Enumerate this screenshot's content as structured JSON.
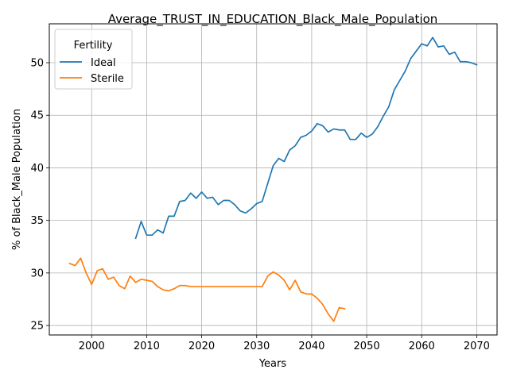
{
  "chart_data": {
    "type": "line",
    "title": "Average_TRUST_IN_EDUCATION_Black_Male_Population",
    "xlabel": "Years",
    "ylabel": "% of Black_Male Population",
    "xlim": [
      1992.3,
      2073.7
    ],
    "ylim": [
      24.1,
      53.7
    ],
    "xticks": [
      2000,
      2010,
      2020,
      2030,
      2040,
      2050,
      2060,
      2070
    ],
    "yticks": [
      25,
      30,
      35,
      40,
      45,
      50
    ],
    "grid": true,
    "legend": {
      "title": "Fertility",
      "placement": "top-left"
    },
    "series": [
      {
        "name": "Ideal",
        "color": "#1f77b4",
        "x": [
          2008,
          2009,
          2010,
          2011,
          2012,
          2013,
          2014,
          2015,
          2016,
          2017,
          2018,
          2019,
          2020,
          2021,
          2022,
          2023,
          2024,
          2025,
          2026,
          2027,
          2028,
          2029,
          2030,
          2031,
          2032,
          2033,
          2034,
          2035,
          2036,
          2037,
          2038,
          2039,
          2040,
          2041,
          2042,
          2043,
          2044,
          2045,
          2046,
          2047,
          2048,
          2049,
          2050,
          2051,
          2052,
          2053,
          2054,
          2055,
          2056,
          2057,
          2058,
          2059,
          2060,
          2061,
          2062,
          2063,
          2064,
          2065,
          2066,
          2067,
          2068,
          2069,
          2070
        ],
        "y": [
          33.3,
          34.9,
          33.6,
          33.6,
          34.1,
          33.8,
          35.4,
          35.4,
          36.8,
          36.9,
          37.6,
          37.1,
          37.7,
          37.1,
          37.2,
          36.5,
          36.9,
          36.9,
          36.5,
          35.9,
          35.7,
          36.1,
          36.6,
          36.8,
          38.5,
          40.2,
          40.9,
          40.6,
          41.7,
          42.1,
          42.9,
          43.1,
          43.5,
          44.2,
          44.0,
          43.4,
          43.7,
          43.6,
          43.6,
          42.7,
          42.7,
          43.3,
          42.9,
          43.2,
          43.9,
          44.9,
          45.8,
          47.4,
          48.3,
          49.2,
          50.4,
          51.1,
          51.8,
          51.6,
          52.4,
          51.5,
          51.6,
          50.8,
          51.0,
          50.1,
          50.1,
          50.0,
          49.8
        ]
      },
      {
        "name": "Sterile",
        "color": "#ff7f0e",
        "x": [
          1996,
          1997,
          1998,
          1999,
          2000,
          2001,
          2002,
          2003,
          2004,
          2005,
          2006,
          2007,
          2008,
          2009,
          2010,
          2011,
          2012,
          2013,
          2014,
          2015,
          2016,
          2017,
          2018,
          2019,
          2020,
          2021,
          2022,
          2023,
          2024,
          2025,
          2026,
          2027,
          2028,
          2029,
          2030,
          2031,
          2032,
          2033,
          2034,
          2035,
          2036,
          2037,
          2038,
          2039,
          2040,
          2041,
          2042,
          2043,
          2044,
          2045,
          2046
        ],
        "y": [
          30.9,
          30.7,
          31.4,
          30.0,
          28.9,
          30.2,
          30.4,
          29.4,
          29.6,
          28.8,
          28.5,
          29.7,
          29.1,
          29.4,
          29.3,
          29.2,
          28.7,
          28.4,
          28.3,
          28.5,
          28.8,
          28.8,
          28.7,
          28.7,
          28.7,
          28.7,
          28.7,
          28.7,
          28.7,
          28.7,
          28.7,
          28.7,
          28.7,
          28.7,
          28.7,
          28.7,
          29.7,
          30.1,
          29.8,
          29.3,
          28.4,
          29.3,
          28.2,
          28.0,
          28.0,
          27.6,
          27.0,
          26.1,
          25.4,
          26.7,
          26.6
        ]
      }
    ]
  }
}
